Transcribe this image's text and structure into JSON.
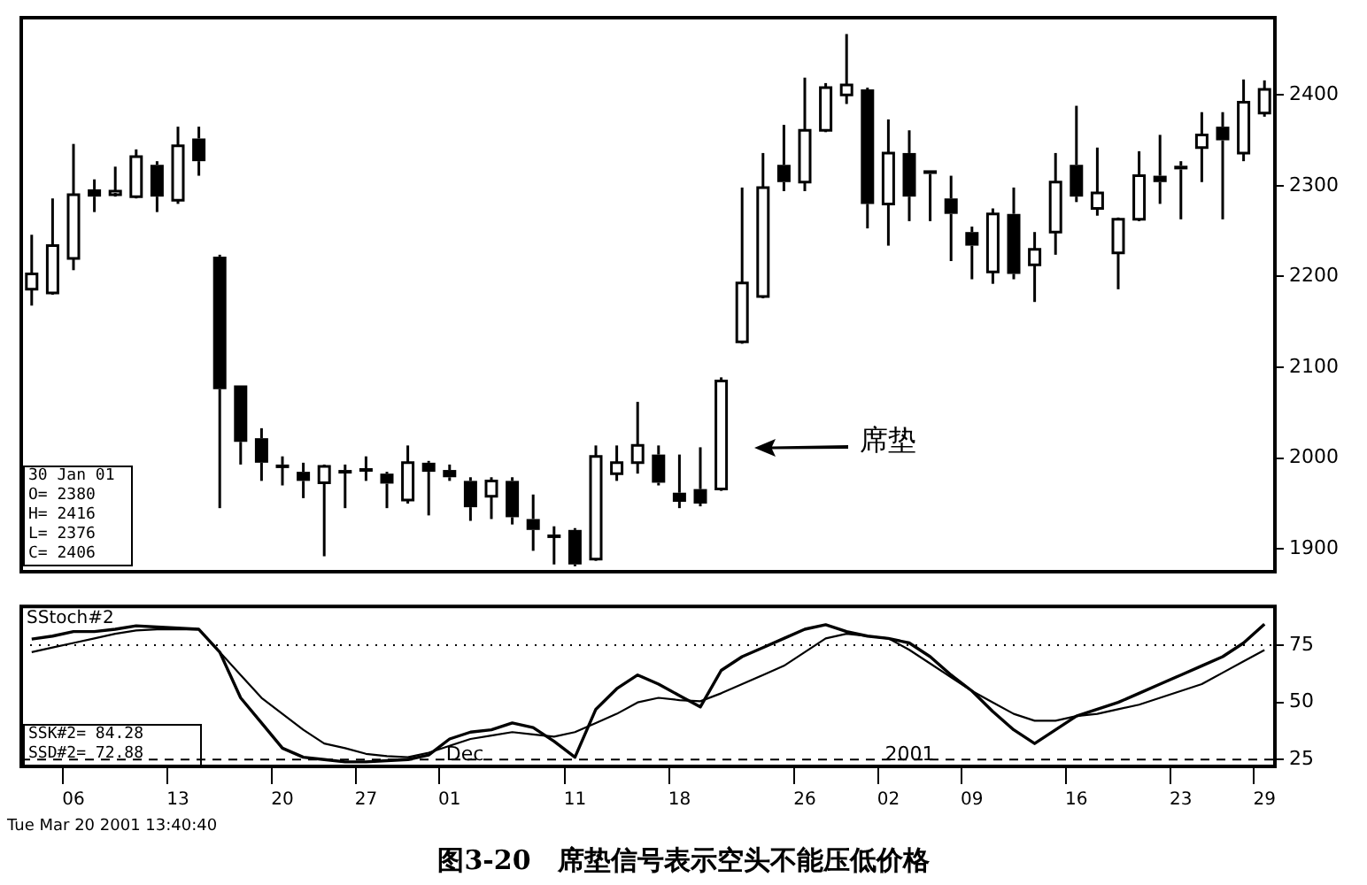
{
  "chart_data": [
    {
      "type": "candlestick",
      "title": "图3-20　席垫信号表示空头不能压低价格",
      "categories": [
        null,
        null,
        "06",
        null,
        null,
        null,
        null,
        "13",
        null,
        null,
        null,
        null,
        "20",
        null,
        null,
        null,
        "27",
        null,
        null,
        null,
        "01",
        null,
        null,
        null,
        null,
        null,
        "11",
        null,
        null,
        null,
        null,
        "18",
        null,
        null,
        null,
        null,
        null,
        "26",
        null,
        null,
        null,
        "02",
        null,
        null,
        null,
        "09",
        null,
        null,
        null,
        null,
        "16",
        null,
        null,
        null,
        null,
        "23",
        null,
        null,
        null,
        "29"
      ],
      "ohlc": [
        [
          2186,
          2246,
          2168,
          2203
        ],
        [
          2182,
          2286,
          2180,
          2234
        ],
        [
          2220,
          2346,
          2207,
          2290
        ],
        [
          2296,
          2307,
          2271,
          2288
        ],
        [
          2292,
          2321,
          2288,
          2294
        ],
        [
          2288,
          2340,
          2286,
          2332
        ],
        [
          2323,
          2327,
          2271,
          2288
        ],
        [
          2284,
          2365,
          2280,
          2344
        ],
        [
          2352,
          2365,
          2311,
          2327
        ],
        [
          2222,
          2224,
          1945,
          2076
        ],
        [
          2080,
          2080,
          1993,
          2018
        ],
        [
          2022,
          2033,
          1975,
          1995
        ],
        [
          1993,
          2002,
          1970,
          1991
        ],
        [
          1985,
          1995,
          1956,
          1975
        ],
        [
          1973,
          1993,
          1892,
          1991
        ],
        [
          1987,
          1993,
          1945,
          1985
        ],
        [
          1989,
          2002,
          1975,
          1987
        ],
        [
          1983,
          1985,
          1945,
          1972
        ],
        [
          1954,
          2014,
          1950,
          1995
        ],
        [
          1995,
          1997,
          1937,
          1985
        ],
        [
          1987,
          1993,
          1975,
          1979
        ],
        [
          1975,
          1979,
          1931,
          1946
        ],
        [
          1958,
          1979,
          1933,
          1975
        ],
        [
          1975,
          1979,
          1927,
          1935
        ],
        [
          1933,
          1960,
          1898,
          1921
        ],
        [
          1916,
          1925,
          1883,
          1914
        ],
        [
          1921,
          1923,
          1881,
          1883
        ],
        [
          1889,
          2014,
          1887,
          2002
        ],
        [
          1983,
          2014,
          1975,
          1995
        ],
        [
          1995,
          2062,
          1983,
          2014
        ],
        [
          2004,
          2014,
          1970,
          1973
        ],
        [
          1962,
          2004,
          1945,
          1952
        ],
        [
          1966,
          2012,
          1947,
          1950
        ],
        [
          1966,
          2089,
          1964,
          2085
        ],
        [
          2128,
          2298,
          2126,
          2193
        ],
        [
          2178,
          2336,
          2176,
          2298
        ],
        [
          2323,
          2367,
          2294,
          2304
        ],
        [
          2304,
          2419,
          2294,
          2361
        ],
        [
          2361,
          2413,
          2359,
          2408
        ],
        [
          2400,
          2467,
          2390,
          2411
        ],
        [
          2406,
          2408,
          2253,
          2280
        ],
        [
          2280,
          2373,
          2234,
          2336
        ],
        [
          2336,
          2361,
          2261,
          2288
        ],
        [
          2317,
          2317,
          2261,
          2313
        ],
        [
          2286,
          2311,
          2217,
          2269
        ],
        [
          2249,
          2255,
          2197,
          2234
        ],
        [
          2205,
          2275,
          2192,
          2269
        ],
        [
          2269,
          2298,
          2197,
          2203
        ],
        [
          2213,
          2249,
          2172,
          2230
        ],
        [
          2249,
          2336,
          2224,
          2304
        ],
        [
          2323,
          2388,
          2282,
          2288
        ],
        [
          2275,
          2342,
          2267,
          2292
        ],
        [
          2226,
          2265,
          2186,
          2263
        ],
        [
          2263,
          2338,
          2261,
          2311
        ],
        [
          2311,
          2356,
          2280,
          2304
        ],
        [
          2322,
          2327,
          2263,
          2318
        ],
        [
          2342,
          2381,
          2304,
          2356
        ],
        [
          2365,
          2381,
          2263,
          2350
        ],
        [
          2336,
          2417,
          2327,
          2392
        ],
        [
          2380,
          2416,
          2376,
          2406
        ]
      ],
      "color": "#000000",
      "ylim": [
        1875,
        2485
      ],
      "yticks": [
        1900,
        2000,
        2100,
        2200,
        2300,
        2400
      ],
      "tick_labels": "y",
      "annotations": [
        "30 Jan 01",
        "O= 2380",
        "H= 2416",
        "L= 2376",
        "C= 2406",
        "席垫"
      ]
    },
    {
      "type": "line",
      "categories": [
        null,
        null,
        "06",
        null,
        null,
        null,
        null,
        "13",
        null,
        null,
        null,
        null,
        "20",
        null,
        null,
        null,
        "27",
        null,
        null,
        null,
        "01",
        null,
        null,
        null,
        null,
        null,
        "11",
        null,
        null,
        null,
        null,
        "18",
        null,
        null,
        null,
        null,
        null,
        "26",
        null,
        null,
        null,
        "02",
        null,
        null,
        null,
        "09",
        null,
        null,
        null,
        null,
        "16",
        null,
        null,
        null,
        null,
        "23",
        null,
        null,
        null,
        "29"
      ],
      "series": [
        {
          "color": "#000000",
          "values": [
            77.7,
            79,
            81,
            81,
            82,
            83.5,
            83,
            82.5,
            82,
            72,
            52,
            41,
            30,
            26,
            25,
            24,
            24,
            24.5,
            25,
            27,
            34,
            37,
            38,
            41,
            39,
            33,
            26,
            47,
            56,
            62,
            58,
            53,
            48,
            64,
            70,
            74,
            78,
            82,
            84,
            81,
            79,
            78,
            76,
            70,
            62,
            55,
            46,
            38,
            32,
            38,
            44,
            47,
            50,
            54,
            58,
            62,
            66,
            70,
            76,
            84.28
          ]
        },
        {
          "color": "#000000",
          "values": [
            72,
            74,
            76,
            78,
            80,
            81.5,
            82,
            82,
            82,
            72,
            62,
            52,
            45,
            38,
            32,
            30,
            27.5,
            26.5,
            26,
            28,
            31,
            34,
            35.5,
            37,
            36,
            35,
            37,
            41,
            45,
            50,
            52,
            51,
            50.5,
            54,
            58,
            62,
            66,
            72,
            78,
            80,
            79,
            78,
            73,
            67,
            61,
            55,
            50,
            45,
            42,
            42,
            44,
            45,
            47,
            49,
            52,
            55,
            58,
            63,
            68,
            72.88
          ]
        }
      ],
      "ylim": [
        22,
        92
      ],
      "yticks": [
        25,
        50,
        75
      ],
      "marker": "none",
      "ref_lines": [
        {
          "axis": "y",
          "value": 75,
          "line_style": "dotted"
        },
        {
          "axis": "y",
          "value": 25,
          "line_style": "dashed"
        }
      ],
      "annotations": [
        "SStoch#2",
        "SSK#2= 84.28",
        "SSD#2= 72.88",
        {
          "text": "Dec",
          "x": "01"
        },
        {
          "text": "2001",
          "x": "02"
        },
        "Tue Mar 20 2001 13:40:40"
      ]
    }
  ]
}
